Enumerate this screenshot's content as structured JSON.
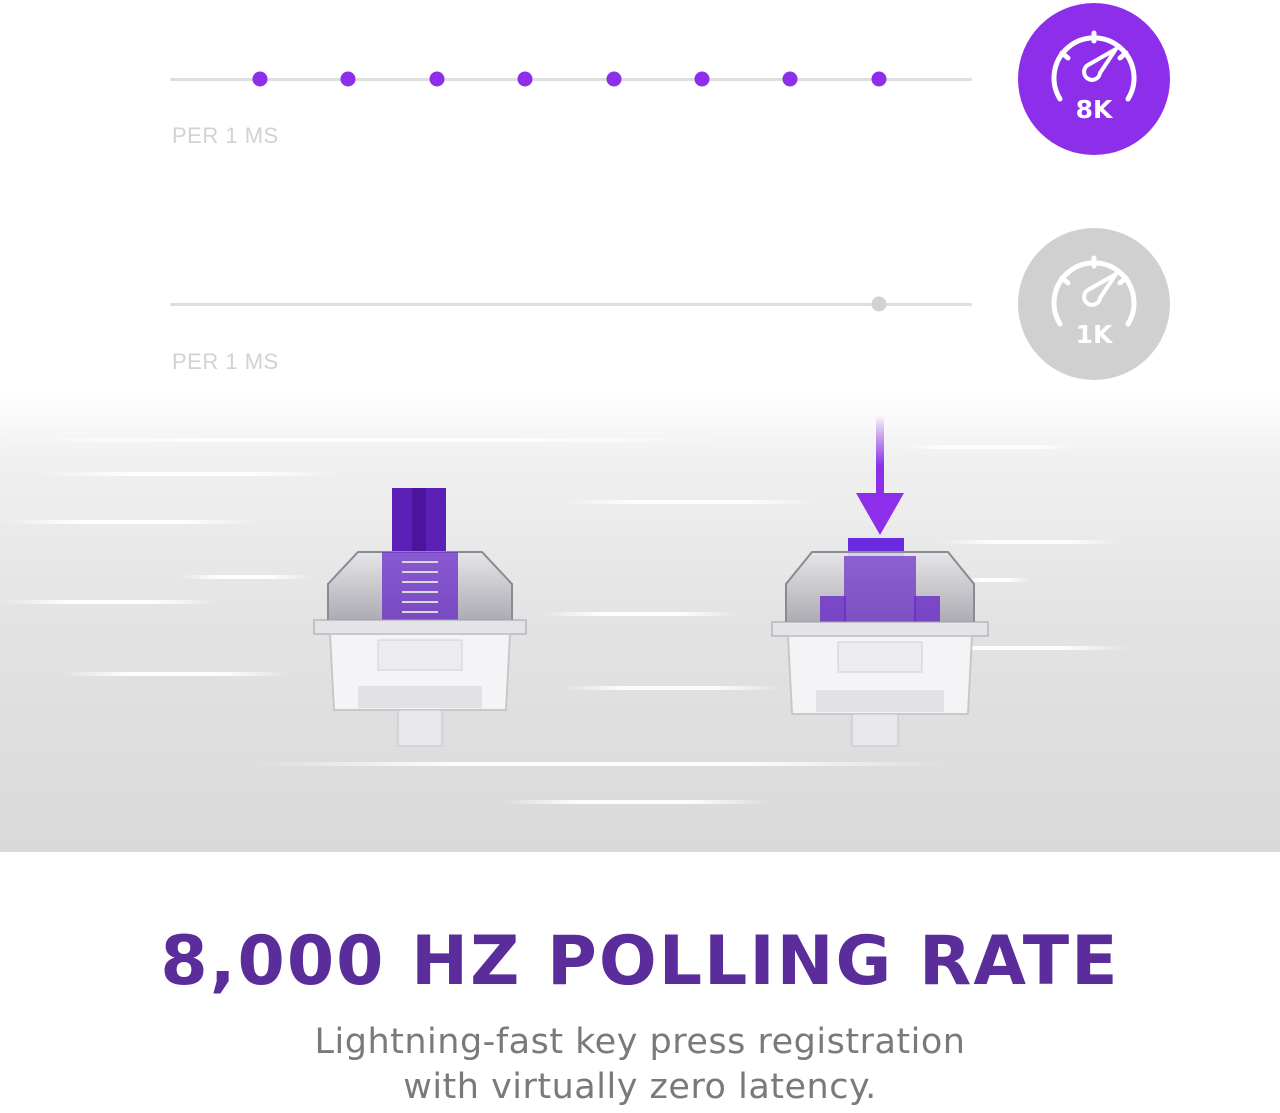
{
  "rows": [
    {
      "label": "PER 1 MS",
      "badge": "8K",
      "badge_color": "#8d2eea"
    },
    {
      "label": "PER 1 MS",
      "badge": "1K",
      "badge_color": "#d0d0d0"
    }
  ],
  "colors": {
    "accent": "#8d2eea",
    "headline": "#5a2d9b",
    "body_text": "#7a7a7a",
    "inactive": "#d2d2d2"
  },
  "icons": {
    "speed": "speedometer-icon",
    "arrow": "arrow-down-icon"
  },
  "headline": "8,000 HZ POLLING RATE",
  "subtext": {
    "line1": "Lightning-fast key press registration",
    "line2": "with virtually zero latency."
  }
}
